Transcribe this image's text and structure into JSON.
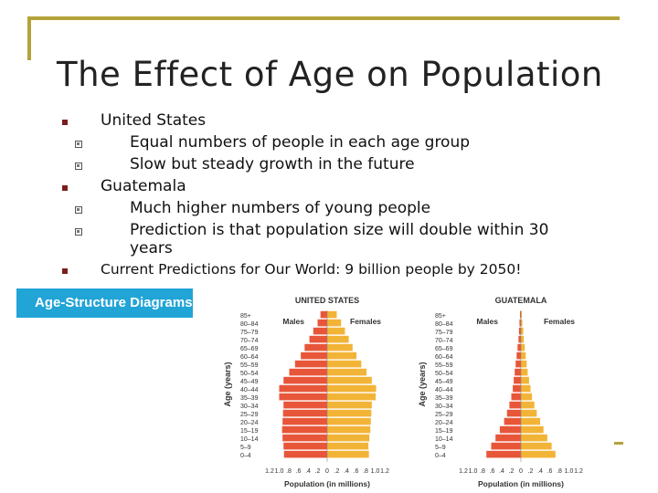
{
  "slide": {
    "title": "The Effect of Age on Population",
    "bullets": [
      {
        "text": "United States",
        "subs": [
          "Equal numbers of people in each age group",
          "Slow but steady growth in the future"
        ]
      },
      {
        "text": "Guatemala",
        "subs": [
          "Much higher numbers of young people",
          "Prediction is that population size will double within 30",
          "years"
        ]
      },
      {
        "text": "Current Predictions for Our World: 9 billion people by 2050!",
        "subs": []
      }
    ],
    "banner": "Age-Structure Diagrams"
  },
  "colors": {
    "male": "#e8563a",
    "female": "#f2b437",
    "banner": "#21a4d6",
    "accent_line": "#b5a33a"
  },
  "chart_data": [
    {
      "type": "bar",
      "title": "UNITED STATES",
      "orientation": "horizontal-population-pyramid",
      "ylabel": "Age (years)",
      "xlabel": "Population (in millions)",
      "x_ticks": [
        "1.2",
        "1.0",
        ".8",
        ".6",
        ".4",
        ".2",
        "0",
        ".2",
        ".4",
        ".6",
        ".8",
        "1.0",
        "1.2"
      ],
      "xlim": [
        0,
        1.2
      ],
      "categories": [
        "85+",
        "80–84",
        "75–79",
        "70–74",
        "65–69",
        "60–64",
        "55–59",
        "50–54",
        "45–49",
        "40–44",
        "35–39",
        "30–34",
        "25–29",
        "20–24",
        "15–19",
        "10–14",
        "5–9",
        "0–4"
      ],
      "legend": [
        "Males",
        "Females"
      ],
      "series": [
        {
          "name": "Males",
          "values": [
            0.14,
            0.2,
            0.29,
            0.37,
            0.47,
            0.55,
            0.67,
            0.79,
            0.91,
            1.0,
            1.0,
            0.91,
            0.92,
            0.93,
            0.94,
            0.93,
            0.91,
            0.9
          ]
        },
        {
          "name": "Females",
          "values": [
            0.2,
            0.29,
            0.37,
            0.45,
            0.53,
            0.61,
            0.71,
            0.82,
            0.93,
            1.02,
            1.01,
            0.93,
            0.92,
            0.91,
            0.9,
            0.88,
            0.86,
            0.87
          ]
        }
      ]
    },
    {
      "type": "bar",
      "title": "GUATEMALA",
      "orientation": "horizontal-population-pyramid",
      "ylabel": "Age (years)",
      "xlabel": "Population (in millions)",
      "x_ticks": [
        "1.2",
        "1.0",
        ".8",
        ".6",
        ".4",
        ".2",
        "0",
        ".2",
        ".4",
        ".6",
        ".8",
        "1.0",
        "1.2"
      ],
      "xlim": [
        0,
        1.2
      ],
      "categories": [
        "85+",
        "80–84",
        "75–79",
        "70–74",
        "65–69",
        "60–64",
        "55–59",
        "50–54",
        "45–49",
        "40–44",
        "35–39",
        "30–34",
        "25–29",
        "20–24",
        "15–19",
        "10–14",
        "5–9",
        "0–4"
      ],
      "legend": [
        "Males",
        "Females"
      ],
      "series": [
        {
          "name": "Males",
          "values": [
            0.02,
            0.03,
            0.04,
            0.05,
            0.07,
            0.09,
            0.11,
            0.13,
            0.15,
            0.17,
            0.2,
            0.24,
            0.29,
            0.35,
            0.44,
            0.53,
            0.62,
            0.72
          ]
        },
        {
          "name": "Females",
          "values": [
            0.02,
            0.03,
            0.05,
            0.06,
            0.08,
            0.1,
            0.12,
            0.14,
            0.17,
            0.2,
            0.23,
            0.28,
            0.33,
            0.4,
            0.47,
            0.55,
            0.64,
            0.72
          ]
        }
      ]
    }
  ]
}
